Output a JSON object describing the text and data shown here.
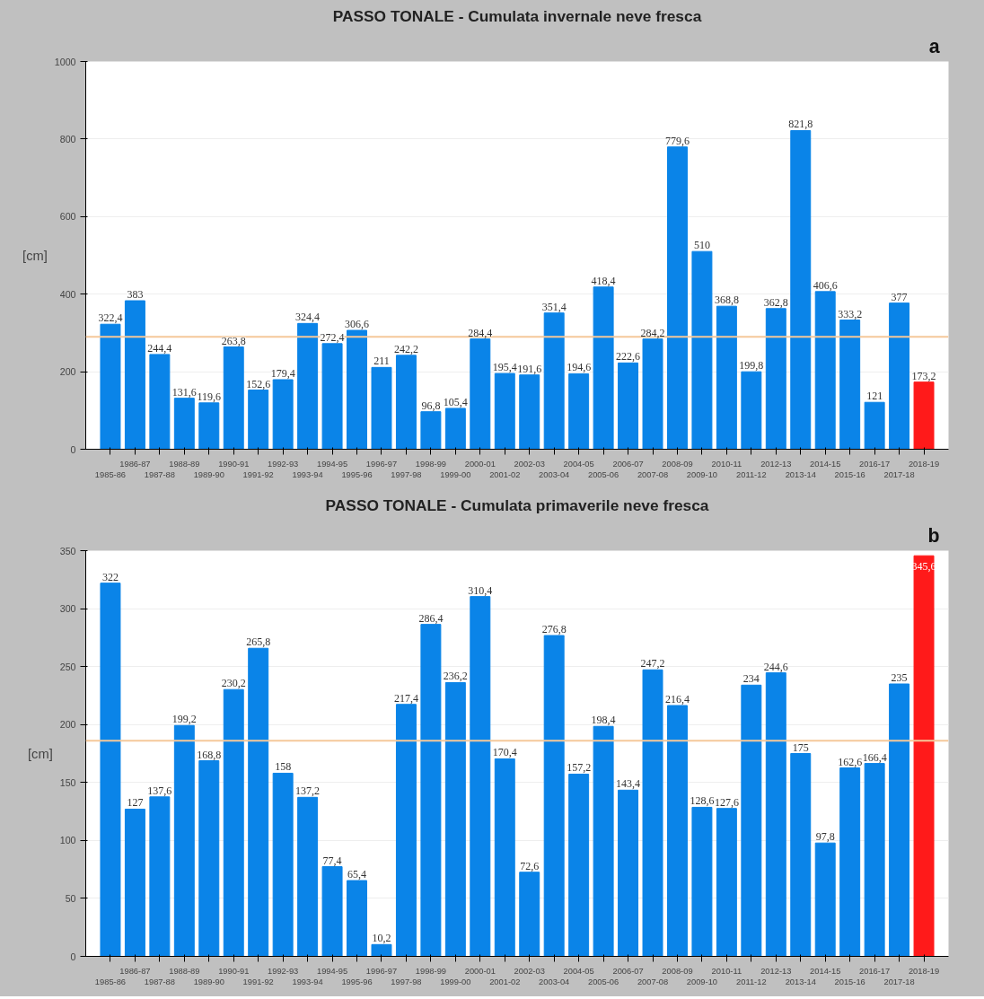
{
  "chart_data": [
    {
      "type": "bar",
      "title": "PASSO TONALE - Cumulata invernale neve fresca",
      "ylabel": "[cm]",
      "categories": [
        "1985-86",
        "1986-87",
        "1987-88",
        "1988-89",
        "1989-90",
        "1990-91",
        "1991-92",
        "1992-93",
        "1993-94",
        "1994-95",
        "1995-96",
        "1996-97",
        "1997-98",
        "1998-99",
        "1999-00",
        "2000-01",
        "2001-02",
        "2002-03",
        "2003-04",
        "2004-05",
        "2005-06",
        "2006-07",
        "2007-08",
        "2008-09",
        "2009-10",
        "2010-11",
        "2011-12",
        "2012-13",
        "2013-14",
        "2014-15",
        "2015-16",
        "2016-17",
        "2017-18",
        "2018-19"
      ],
      "values": [
        322.4,
        383,
        244.4,
        131.6,
        119.6,
        263.8,
        152.6,
        179.4,
        324.4,
        272.4,
        306.6,
        211,
        242.2,
        96.8,
        105.4,
        284.4,
        195.4,
        191.6,
        351.4,
        194.6,
        418.4,
        222.6,
        284.2,
        779.6,
        510,
        368.8,
        199.8,
        362.8,
        821.8,
        406.6,
        333.2,
        121,
        377,
        173.2
      ],
      "colors": [
        "#0a84e8",
        "#0a84e8",
        "#0a84e8",
        "#0a84e8",
        "#0a84e8",
        "#0a84e8",
        "#0a84e8",
        "#0a84e8",
        "#0a84e8",
        "#0a84e8",
        "#0a84e8",
        "#0a84e8",
        "#0a84e8",
        "#0a84e8",
        "#0a84e8",
        "#0a84e8",
        "#0a84e8",
        "#0a84e8",
        "#0a84e8",
        "#0a84e8",
        "#0a84e8",
        "#0a84e8",
        "#0a84e8",
        "#0a84e8",
        "#0a84e8",
        "#0a84e8",
        "#0a84e8",
        "#0a84e8",
        "#0a84e8",
        "#0a84e8",
        "#0a84e8",
        "#0a84e8",
        "#0a84e8",
        "#ff1a1a"
      ],
      "value_labels": [
        "322,4",
        "383",
        "244,4",
        "131,6",
        "119,6",
        "263,8",
        "152,6",
        "179,4",
        "324,4",
        "272,4",
        "306,6",
        "211",
        "242,2",
        "96,8",
        "105,4",
        "284,4",
        "195,4",
        "191,6",
        "351,4",
        "194,6",
        "418,4",
        "222,6",
        "284,2",
        "779,6",
        "510",
        "368,8",
        "199,8",
        "362,8",
        "821,8",
        "406,6",
        "333,2",
        "121",
        "377",
        "173,2"
      ],
      "ylim": [
        0,
        1000
      ],
      "yticks": [
        0,
        200,
        400,
        600,
        800,
        1000
      ],
      "grid": "y",
      "ref_lines": [
        {
          "axis": "y",
          "value": 290,
          "label": null,
          "color": "#f5c89a"
        }
      ],
      "annotations": [
        "a"
      ]
    },
    {
      "type": "bar",
      "title": "PASSO TONALE - Cumulata primaverile neve fresca",
      "ylabel": "[cm]",
      "categories": [
        "1985-86",
        "1986-87",
        "1987-88",
        "1988-89",
        "1989-90",
        "1990-91",
        "1991-92",
        "1992-93",
        "1993-94",
        "1994-95",
        "1995-96",
        "1996-97",
        "1997-98",
        "1998-99",
        "1999-00",
        "2000-01",
        "2001-02",
        "2002-03",
        "2003-04",
        "2004-05",
        "2005-06",
        "2006-07",
        "2007-08",
        "2008-09",
        "2009-10",
        "2010-11",
        "2011-12",
        "2012-13",
        "2013-14",
        "2014-15",
        "2015-16",
        "2016-17",
        "2017-18",
        "2018-19"
      ],
      "values": [
        322,
        127,
        137.6,
        199.2,
        168.8,
        230.2,
        265.8,
        158,
        137.2,
        77.4,
        65.4,
        10.2,
        217.4,
        286.4,
        236.2,
        310.4,
        170.4,
        72.6,
        276.8,
        157.2,
        198.4,
        143.4,
        247.2,
        216.4,
        128.6,
        127.6,
        234,
        244.6,
        175,
        97.8,
        162.6,
        166.4,
        235,
        345.6
      ],
      "colors": [
        "#0a84e8",
        "#0a84e8",
        "#0a84e8",
        "#0a84e8",
        "#0a84e8",
        "#0a84e8",
        "#0a84e8",
        "#0a84e8",
        "#0a84e8",
        "#0a84e8",
        "#0a84e8",
        "#0a84e8",
        "#0a84e8",
        "#0a84e8",
        "#0a84e8",
        "#0a84e8",
        "#0a84e8",
        "#0a84e8",
        "#0a84e8",
        "#0a84e8",
        "#0a84e8",
        "#0a84e8",
        "#0a84e8",
        "#0a84e8",
        "#0a84e8",
        "#0a84e8",
        "#0a84e8",
        "#0a84e8",
        "#0a84e8",
        "#0a84e8",
        "#0a84e8",
        "#0a84e8",
        "#0a84e8",
        "#ff1a1a"
      ],
      "value_labels": [
        "322",
        "127",
        "137,6",
        "199,2",
        "168,8",
        "230,2",
        "265,8",
        "158",
        "137,2",
        "77,4",
        "65,4",
        "10,2",
        "217,4",
        "286,4",
        "236,2",
        "310,4",
        "170,4",
        "72,6",
        "276,8",
        "157,2",
        "198,4",
        "143,4",
        "247,2",
        "216,4",
        "128,6",
        "127,6",
        "234",
        "244,6",
        "175",
        "97,8",
        "162,6",
        "166,4",
        "235",
        "345,6"
      ],
      "ylim": [
        0,
        350
      ],
      "yticks": [
        0,
        50,
        100,
        150,
        200,
        250,
        300,
        350
      ],
      "grid": "y",
      "ref_lines": [
        {
          "axis": "y",
          "value": 186,
          "label": null,
          "color": "#f5c89a"
        }
      ],
      "annotations": [
        "b"
      ]
    }
  ]
}
